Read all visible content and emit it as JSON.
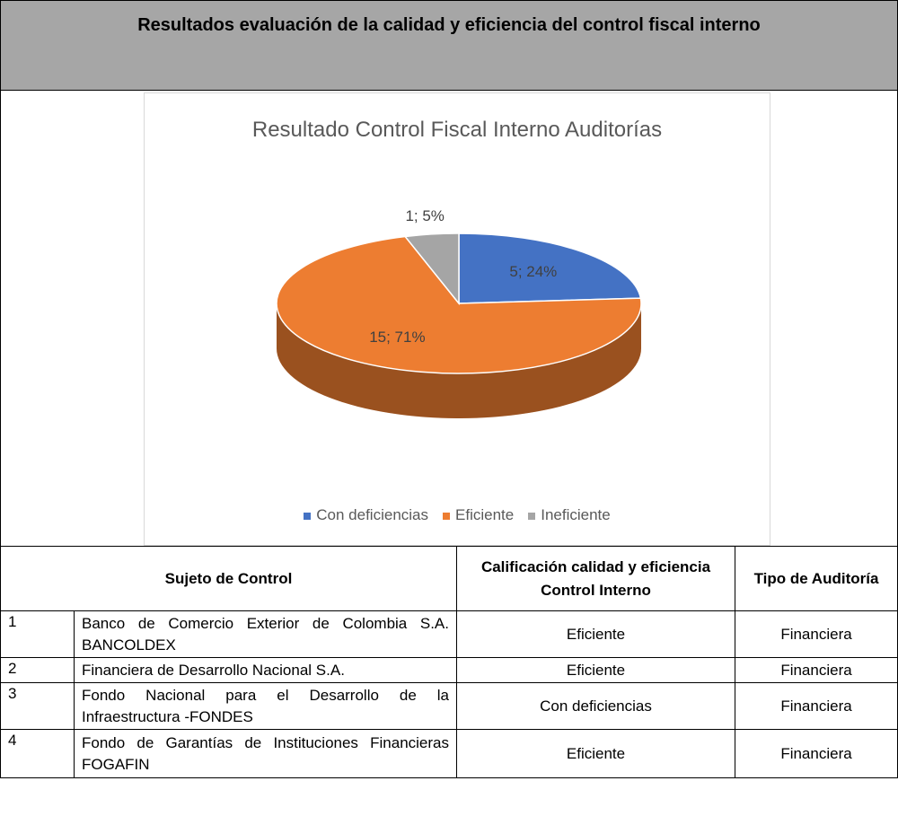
{
  "header": {
    "title": "Resultados evaluación de la calidad y eficiencia del control fiscal interno"
  },
  "chart_data": {
    "type": "pie",
    "title": "Resultado Control Fiscal Interno Auditorías",
    "categories": [
      "Con deficiencias",
      "Eficiente",
      "Ineficiente"
    ],
    "values": [
      5,
      15,
      1
    ],
    "value_labels": [
      "5; 24%",
      "15; 71%",
      "1; 5%"
    ],
    "colors": [
      "#4472c4",
      "#ed7d31",
      "#a5a5a5"
    ],
    "legend": "bottom"
  },
  "table": {
    "header": [
      "Sujeto de Control",
      "Calificación calidad y eficiencia Control Interno",
      "Tipo de Auditoría"
    ],
    "rows": [
      [
        1,
        "Banco de Comercio Exterior de Colombia S.A. BANCOLDEX",
        "Eficiente",
        "Financiera"
      ],
      [
        2,
        "Financiera de Desarrollo Nacional S.A.",
        "Eficiente",
        "Financiera"
      ],
      [
        3,
        "Fondo Nacional para el Desarrollo de la Infraestructura -FONDES",
        "Con deficiencias",
        "Financiera"
      ],
      [
        4,
        "Fondo de Garantías de Instituciones Financieras FOGAFIN",
        "Eficiente",
        "Financiera"
      ]
    ]
  }
}
